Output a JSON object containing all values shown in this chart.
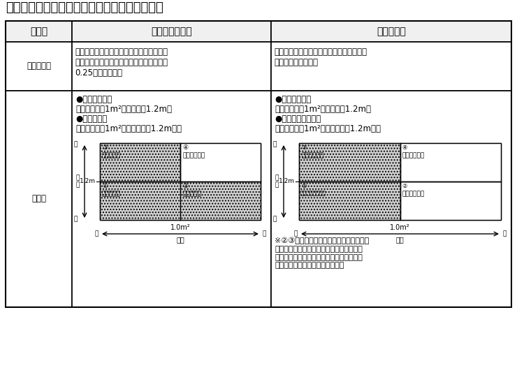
{
  "title": "【参考】労働安全衛生法と建築基準法の相違点",
  "col_headers": [
    "項　目",
    "労働安全衛生法",
    "建築基準法"
  ],
  "row1_label": "適用の対象",
  "row1_col1": "工場等に設置されるエレベーター（一般公\n衆の用に供されるものは除く）で積載荷重\n0.25ｔ以上のもの",
  "row1_col2": "人又は荷物を運搬する昇降機（用途、積載\n荷重にかかわらず）",
  "row2_label": "区　分",
  "row2_col1_text1": "●エレベーター",
  "row2_col1_text2": "　かごの面積1m²超かつ高さ1.2m超",
  "row2_col1_text3": "●簡易リフト",
  "row2_col1_text4": "　かごの面積1m²以下又は高さ1.2m以下",
  "row2_col2_text1": "●エレベーター",
  "row2_col2_text2": "　かごの面積1m²超又は高さ1.2m超",
  "row2_col2_text3": "●小荷物専用昇降機",
  "row2_col2_text4": "　かごの面積1m²以下かつ高さ1.2m以下",
  "footnote": "※②③は労働安全衛生法では簡易リフトで\n　すが、建築基準法ではエレベーターとな\n　るため、建築基準法におけるエレベータ\n　ーの構造規定が適用されます。",
  "bg_color": "#ffffff",
  "text_color": "#000000",
  "grid_color": "#000000",
  "hatch_color": "#aaaaaa",
  "font_size_title": 13,
  "font_size_header": 10,
  "font_size_body": 8.5,
  "font_size_small": 7.5,
  "font_size_footnote": 8
}
